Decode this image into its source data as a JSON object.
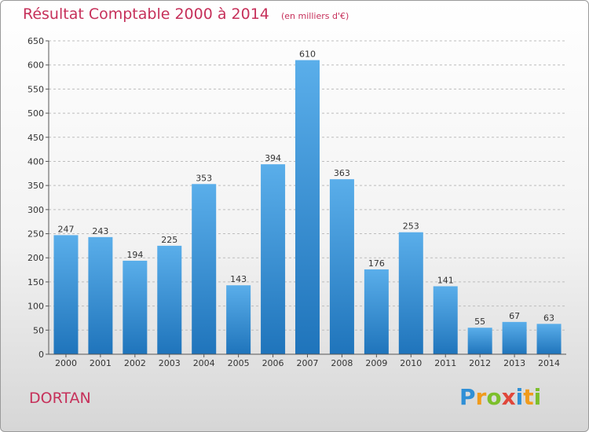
{
  "header": {
    "title": "Résultat Comptable 2000 à 2014",
    "subtitle": "(en milliers d'€)"
  },
  "footer": {
    "city": "DORTAN",
    "brand": "Proxiti",
    "brand_letters": [
      "P",
      "r",
      "o",
      "x",
      "i",
      "t",
      "i"
    ]
  },
  "colors": {
    "title": "#c6305a",
    "bar_top": "#5aaeea",
    "bar_bottom": "#1f74bb",
    "grid": "#bdbdbd"
  },
  "chart_data": {
    "type": "bar",
    "title": "Résultat Comptable 2000 à 2014",
    "subtitle": "(en milliers d'€)",
    "xlabel": "",
    "ylabel": "",
    "ylim": [
      0,
      650
    ],
    "yticks": [
      0,
      50,
      100,
      150,
      200,
      250,
      300,
      350,
      400,
      450,
      500,
      550,
      600,
      650
    ],
    "grid": "horizontal dashed",
    "categories": [
      "2000",
      "2001",
      "2002",
      "2003",
      "2004",
      "2005",
      "2006",
      "2007",
      "2008",
      "2009",
      "2010",
      "2011",
      "2012",
      "2013",
      "2014"
    ],
    "values": [
      247,
      243,
      194,
      225,
      353,
      143,
      394,
      610,
      363,
      176,
      253,
      141,
      55,
      67,
      63
    ]
  }
}
